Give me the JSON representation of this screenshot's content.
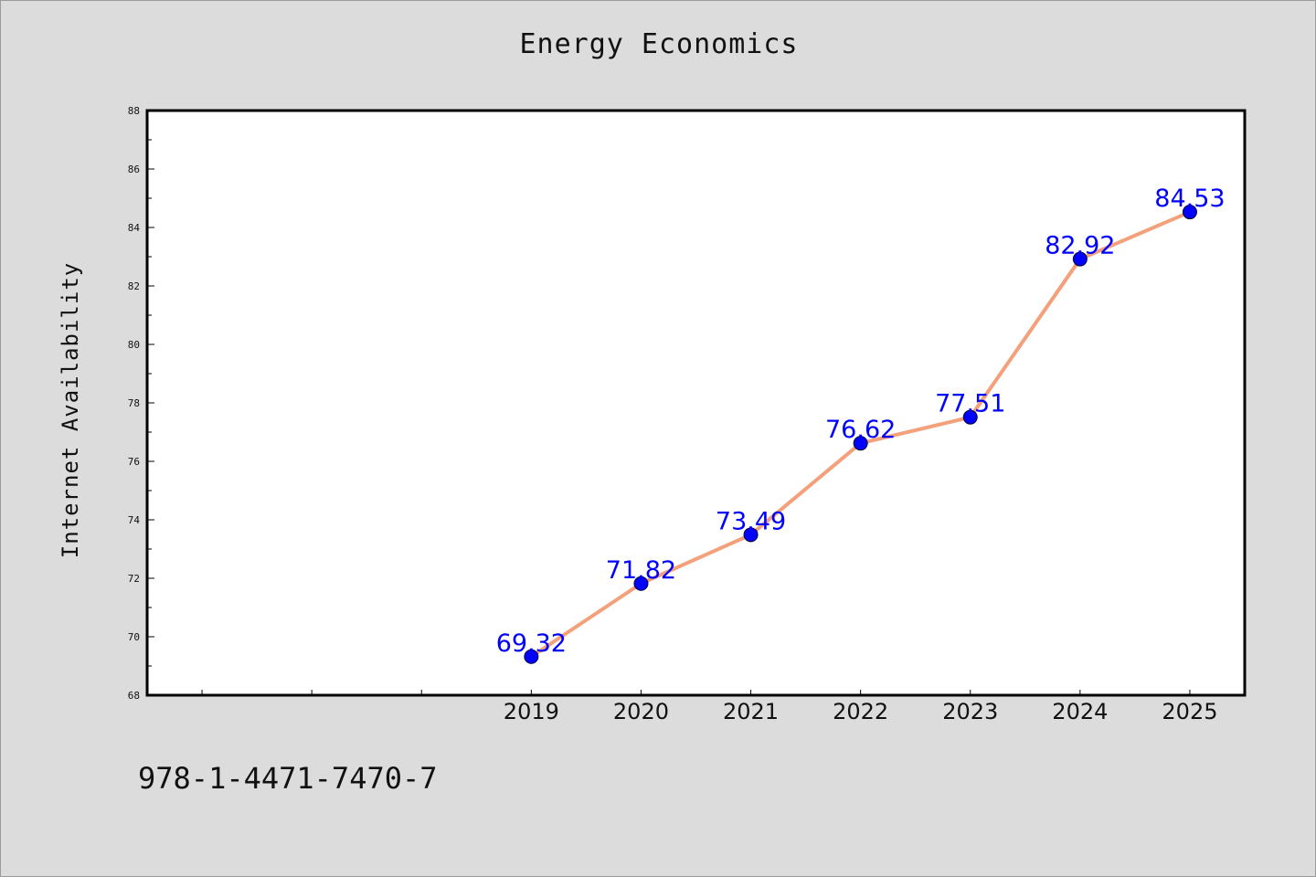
{
  "chart_data": {
    "type": "line",
    "title": "Energy Economics",
    "xlabel": "",
    "ylabel": "Internet Availability",
    "categories": [
      "2019",
      "2020",
      "2021",
      "2022",
      "2023",
      "2024",
      "2025"
    ],
    "series": [
      {
        "values": [
          69.32,
          71.82,
          73.49,
          76.62,
          77.51,
          82.92,
          84.53
        ],
        "data_labels": [
          "69.32",
          "71.82",
          "73.49",
          "76.62",
          "77.51",
          "82.92",
          "84.53"
        ]
      }
    ],
    "x_range": [
      2015.5,
      2025.5
    ],
    "ylim": [
      68,
      88
    ],
    "y_ticks": [
      "68",
      "70",
      "72",
      "74",
      "76",
      "78",
      "80",
      "82",
      "84",
      "86",
      "88"
    ],
    "grid": false,
    "legend": "none",
    "colors": {
      "line": "#f4a07a",
      "marker": "#0000ff",
      "data_label": "#0000ff",
      "background": "#dcdcdc",
      "plot_background": "#ffffff"
    }
  },
  "footnote": "978-1-4471-7470-7"
}
